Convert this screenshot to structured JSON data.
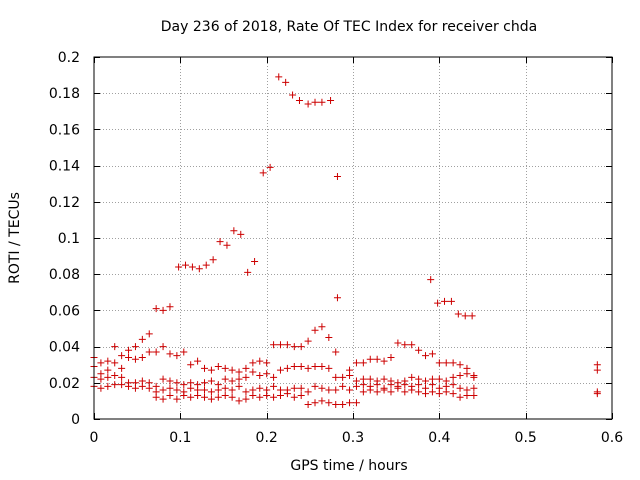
{
  "chart_data": {
    "type": "scatter",
    "title": "Day 236 of 2018, Rate Of TEC Index for receiver chda",
    "xlabel": "GPS time / hours",
    "ylabel": "ROTI / TECUs",
    "xlim": [
      0,
      0.6
    ],
    "ylim": [
      0,
      0.2
    ],
    "xticks": [
      0,
      0.1,
      0.2,
      0.3,
      0.4,
      0.5,
      0.6
    ],
    "xtick_labels": [
      "0",
      "0.1",
      "0.2",
      "0.3",
      "0.4",
      "0.5",
      "0.6"
    ],
    "yticks": [
      0,
      0.02,
      0.04,
      0.06,
      0.08,
      0.1,
      0.12,
      0.14,
      0.16,
      0.18,
      0.2
    ],
    "ytick_labels": [
      "0",
      "0.02",
      "0.04",
      "0.06",
      "0.08",
      "0.1",
      "0.12",
      "0.14",
      "0.16",
      "0.18",
      "0.2"
    ],
    "grid": true,
    "marker": "plus",
    "color": "#cc0000",
    "series": [
      {
        "values": [
          [
            0.0,
            0.034
          ],
          [
            0.008,
            0.031
          ],
          [
            0.016,
            0.032
          ],
          [
            0.024,
            0.04
          ],
          [
            0.032,
            0.035
          ],
          [
            0.04,
            0.038
          ],
          [
            0.048,
            0.04
          ],
          [
            0.056,
            0.044
          ],
          [
            0.064,
            0.047
          ],
          [
            0.072,
            0.061
          ],
          [
            0.08,
            0.06
          ],
          [
            0.088,
            0.062
          ],
          [
            0.098,
            0.084
          ],
          [
            0.106,
            0.085
          ],
          [
            0.114,
            0.084
          ],
          [
            0.122,
            0.083
          ],
          [
            0.13,
            0.085
          ],
          [
            0.138,
            0.088
          ],
          [
            0.146,
            0.098
          ],
          [
            0.154,
            0.096
          ],
          [
            0.162,
            0.104
          ],
          [
            0.17,
            0.102
          ],
          [
            0.178,
            0.081
          ],
          [
            0.186,
            0.087
          ],
          [
            0.196,
            0.136
          ],
          [
            0.204,
            0.139
          ],
          [
            0.214,
            0.189
          ],
          [
            0.222,
            0.186
          ],
          [
            0.23,
            0.179
          ],
          [
            0.238,
            0.176
          ],
          [
            0.248,
            0.174
          ],
          [
            0.256,
            0.175
          ],
          [
            0.264,
            0.175
          ],
          [
            0.274,
            0.176
          ],
          [
            0.282,
            0.134
          ],
          [
            0.282,
            0.067
          ],
          [
            0.39,
            0.077
          ],
          [
            0.398,
            0.064
          ],
          [
            0.406,
            0.065
          ],
          [
            0.414,
            0.065
          ],
          [
            0.422,
            0.058
          ],
          [
            0.43,
            0.057
          ],
          [
            0.438,
            0.057
          ],
          [
            0.583,
            0.03
          ]
        ]
      },
      {
        "values": [
          [
            0.0,
            0.029
          ],
          [
            0.008,
            0.025
          ],
          [
            0.016,
            0.027
          ],
          [
            0.024,
            0.031
          ],
          [
            0.032,
            0.028
          ],
          [
            0.04,
            0.034
          ],
          [
            0.048,
            0.033
          ],
          [
            0.056,
            0.034
          ],
          [
            0.064,
            0.037
          ],
          [
            0.072,
            0.037
          ],
          [
            0.08,
            0.04
          ],
          [
            0.088,
            0.036
          ],
          [
            0.096,
            0.035
          ],
          [
            0.104,
            0.037
          ],
          [
            0.112,
            0.03
          ],
          [
            0.12,
            0.032
          ],
          [
            0.128,
            0.028
          ],
          [
            0.136,
            0.027
          ],
          [
            0.144,
            0.029
          ],
          [
            0.152,
            0.028
          ],
          [
            0.16,
            0.027
          ],
          [
            0.168,
            0.026
          ],
          [
            0.176,
            0.028
          ],
          [
            0.184,
            0.031
          ],
          [
            0.192,
            0.032
          ],
          [
            0.2,
            0.031
          ],
          [
            0.208,
            0.041
          ],
          [
            0.216,
            0.041
          ],
          [
            0.224,
            0.041
          ],
          [
            0.232,
            0.04
          ],
          [
            0.24,
            0.04
          ],
          [
            0.248,
            0.043
          ],
          [
            0.256,
            0.049
          ],
          [
            0.264,
            0.051
          ],
          [
            0.272,
            0.045
          ],
          [
            0.28,
            0.037
          ],
          [
            0.296,
            0.027
          ],
          [
            0.304,
            0.031
          ],
          [
            0.312,
            0.031
          ],
          [
            0.32,
            0.033
          ],
          [
            0.328,
            0.033
          ],
          [
            0.336,
            0.032
          ],
          [
            0.344,
            0.034
          ],
          [
            0.352,
            0.042
          ],
          [
            0.36,
            0.041
          ],
          [
            0.368,
            0.041
          ],
          [
            0.376,
            0.038
          ],
          [
            0.384,
            0.035
          ],
          [
            0.392,
            0.036
          ],
          [
            0.4,
            0.031
          ],
          [
            0.408,
            0.031
          ],
          [
            0.416,
            0.031
          ],
          [
            0.424,
            0.03
          ],
          [
            0.432,
            0.028
          ],
          [
            0.44,
            0.023
          ],
          [
            0.583,
            0.027
          ]
        ]
      },
      {
        "values": [
          [
            0.0,
            0.023
          ],
          [
            0.008,
            0.022
          ],
          [
            0.016,
            0.023
          ],
          [
            0.024,
            0.024
          ],
          [
            0.032,
            0.023
          ],
          [
            0.04,
            0.02
          ],
          [
            0.048,
            0.02
          ],
          [
            0.056,
            0.021
          ],
          [
            0.064,
            0.02
          ],
          [
            0.072,
            0.018
          ],
          [
            0.08,
            0.022
          ],
          [
            0.088,
            0.021
          ],
          [
            0.096,
            0.02
          ],
          [
            0.104,
            0.019
          ],
          [
            0.112,
            0.02
          ],
          [
            0.12,
            0.019
          ],
          [
            0.128,
            0.02
          ],
          [
            0.136,
            0.021
          ],
          [
            0.144,
            0.019
          ],
          [
            0.152,
            0.022
          ],
          [
            0.16,
            0.021
          ],
          [
            0.168,
            0.022
          ],
          [
            0.176,
            0.023
          ],
          [
            0.184,
            0.026
          ],
          [
            0.192,
            0.024
          ],
          [
            0.2,
            0.025
          ],
          [
            0.208,
            0.023
          ],
          [
            0.216,
            0.027
          ],
          [
            0.224,
            0.028
          ],
          [
            0.232,
            0.029
          ],
          [
            0.24,
            0.029
          ],
          [
            0.248,
            0.028
          ],
          [
            0.256,
            0.029
          ],
          [
            0.264,
            0.029
          ],
          [
            0.272,
            0.028
          ],
          [
            0.28,
            0.023
          ],
          [
            0.288,
            0.023
          ],
          [
            0.296,
            0.024
          ],
          [
            0.304,
            0.021
          ],
          [
            0.312,
            0.022
          ],
          [
            0.32,
            0.022
          ],
          [
            0.328,
            0.021
          ],
          [
            0.336,
            0.022
          ],
          [
            0.344,
            0.021
          ],
          [
            0.352,
            0.02
          ],
          [
            0.36,
            0.021
          ],
          [
            0.368,
            0.023
          ],
          [
            0.376,
            0.022
          ],
          [
            0.384,
            0.021
          ],
          [
            0.392,
            0.022
          ],
          [
            0.4,
            0.022
          ],
          [
            0.408,
            0.021
          ],
          [
            0.416,
            0.023
          ],
          [
            0.424,
            0.024
          ],
          [
            0.432,
            0.025
          ],
          [
            0.44,
            0.024
          ]
        ]
      },
      {
        "values": [
          [
            0.0,
            0.018
          ],
          [
            0.008,
            0.017
          ],
          [
            0.016,
            0.018
          ],
          [
            0.024,
            0.019
          ],
          [
            0.032,
            0.019
          ],
          [
            0.04,
            0.018
          ],
          [
            0.048,
            0.017
          ],
          [
            0.056,
            0.018
          ],
          [
            0.064,
            0.017
          ],
          [
            0.072,
            0.015
          ],
          [
            0.08,
            0.016
          ],
          [
            0.088,
            0.017
          ],
          [
            0.096,
            0.016
          ],
          [
            0.104,
            0.015
          ],
          [
            0.112,
            0.017
          ],
          [
            0.12,
            0.016
          ],
          [
            0.128,
            0.016
          ],
          [
            0.136,
            0.015
          ],
          [
            0.144,
            0.016
          ],
          [
            0.152,
            0.017
          ],
          [
            0.16,
            0.016
          ],
          [
            0.168,
            0.018
          ],
          [
            0.176,
            0.015
          ],
          [
            0.184,
            0.016
          ],
          [
            0.192,
            0.017
          ],
          [
            0.2,
            0.016
          ],
          [
            0.208,
            0.018
          ],
          [
            0.216,
            0.016
          ],
          [
            0.224,
            0.016
          ],
          [
            0.232,
            0.017
          ],
          [
            0.24,
            0.017
          ],
          [
            0.248,
            0.015
          ],
          [
            0.256,
            0.018
          ],
          [
            0.264,
            0.017
          ],
          [
            0.272,
            0.016
          ],
          [
            0.28,
            0.016
          ],
          [
            0.288,
            0.018
          ],
          [
            0.296,
            0.016
          ],
          [
            0.304,
            0.018
          ],
          [
            0.312,
            0.019
          ],
          [
            0.32,
            0.018
          ],
          [
            0.328,
            0.019
          ],
          [
            0.336,
            0.017
          ],
          [
            0.344,
            0.019
          ],
          [
            0.352,
            0.018
          ],
          [
            0.36,
            0.019
          ],
          [
            0.368,
            0.018
          ],
          [
            0.376,
            0.019
          ],
          [
            0.384,
            0.017
          ],
          [
            0.392,
            0.019
          ],
          [
            0.4,
            0.017
          ],
          [
            0.408,
            0.018
          ],
          [
            0.416,
            0.019
          ],
          [
            0.424,
            0.017
          ],
          [
            0.432,
            0.016
          ],
          [
            0.44,
            0.017
          ]
        ]
      },
      {
        "values": [
          [
            0.072,
            0.012
          ],
          [
            0.08,
            0.011
          ],
          [
            0.088,
            0.013
          ],
          [
            0.096,
            0.011
          ],
          [
            0.104,
            0.013
          ],
          [
            0.112,
            0.012
          ],
          [
            0.12,
            0.013
          ],
          [
            0.128,
            0.012
          ],
          [
            0.136,
            0.011
          ],
          [
            0.144,
            0.012
          ],
          [
            0.152,
            0.013
          ],
          [
            0.16,
            0.012
          ],
          [
            0.168,
            0.01
          ],
          [
            0.176,
            0.011
          ],
          [
            0.184,
            0.013
          ],
          [
            0.192,
            0.012
          ],
          [
            0.2,
            0.013
          ],
          [
            0.208,
            0.012
          ],
          [
            0.216,
            0.013
          ],
          [
            0.224,
            0.014
          ],
          [
            0.232,
            0.012
          ],
          [
            0.24,
            0.013
          ],
          [
            0.248,
            0.008
          ],
          [
            0.256,
            0.009
          ],
          [
            0.264,
            0.01
          ],
          [
            0.272,
            0.009
          ],
          [
            0.28,
            0.008
          ],
          [
            0.288,
            0.008
          ],
          [
            0.296,
            0.009
          ],
          [
            0.304,
            0.009
          ],
          [
            0.312,
            0.015
          ],
          [
            0.32,
            0.016
          ],
          [
            0.328,
            0.015
          ],
          [
            0.336,
            0.016
          ],
          [
            0.344,
            0.015
          ],
          [
            0.352,
            0.017
          ],
          [
            0.36,
            0.015
          ],
          [
            0.368,
            0.016
          ],
          [
            0.376,
            0.015
          ],
          [
            0.384,
            0.014
          ],
          [
            0.392,
            0.015
          ],
          [
            0.4,
            0.014
          ],
          [
            0.408,
            0.015
          ],
          [
            0.416,
            0.014
          ],
          [
            0.424,
            0.012
          ],
          [
            0.432,
            0.013
          ],
          [
            0.44,
            0.013
          ],
          [
            0.583,
            0.014
          ],
          [
            0.583,
            0.015
          ]
        ]
      }
    ]
  }
}
